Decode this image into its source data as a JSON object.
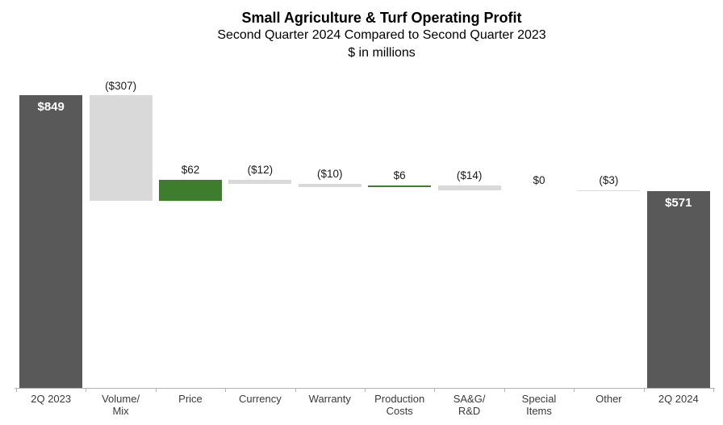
{
  "header": {
    "title": "Small Agriculture & Turf Operating Profit",
    "subtitle": "Second Quarter 2024 Compared to Second Quarter 2023",
    "units_note": "$ in millions"
  },
  "chart_data": {
    "type": "bar",
    "variant": "waterfall",
    "title": "Small Agriculture & Turf Operating Profit",
    "subtitle": "Second Quarter 2024 Compared to Second Quarter 2023",
    "units": "$ in millions",
    "xlabel": "",
    "ylabel": "",
    "ylim": [
      0,
      900
    ],
    "grid": false,
    "legend": false,
    "categories": [
      "2Q 2023",
      "Volume/\nMix",
      "Price",
      "Currency",
      "Warranty",
      "Production\nCosts",
      "SA&G/\nR&D",
      "Special\nItems",
      "Other",
      "2Q 2024"
    ],
    "bars": [
      {
        "category": "2Q 2023",
        "kind": "total",
        "value": 849,
        "display": "$849"
      },
      {
        "category": "Volume/Mix",
        "kind": "decrease",
        "value": -307,
        "display": "($307)"
      },
      {
        "category": "Price",
        "kind": "increase",
        "value": 62,
        "display": "$62"
      },
      {
        "category": "Currency",
        "kind": "decrease",
        "value": -12,
        "display": "($12)"
      },
      {
        "category": "Warranty",
        "kind": "decrease",
        "value": -10,
        "display": "($10)"
      },
      {
        "category": "Production Costs",
        "kind": "increase",
        "value": 6,
        "display": "$6"
      },
      {
        "category": "SA&G/R&D",
        "kind": "decrease",
        "value": -14,
        "display": "($14)"
      },
      {
        "category": "Special Items",
        "kind": "zero",
        "value": 0,
        "display": "$0"
      },
      {
        "category": "Other",
        "kind": "decrease",
        "value": -3,
        "display": "($3)"
      },
      {
        "category": "2Q 2024",
        "kind": "total",
        "value": 571,
        "display": "$571"
      }
    ],
    "colors": {
      "total": "#595959",
      "increase": "#3e7d2d",
      "decrease": "#d9d9d9",
      "zero": "transparent",
      "label_inside": "#ffffff",
      "label_outside": "#1a1a1a",
      "axis": "#b3b3b3"
    }
  }
}
